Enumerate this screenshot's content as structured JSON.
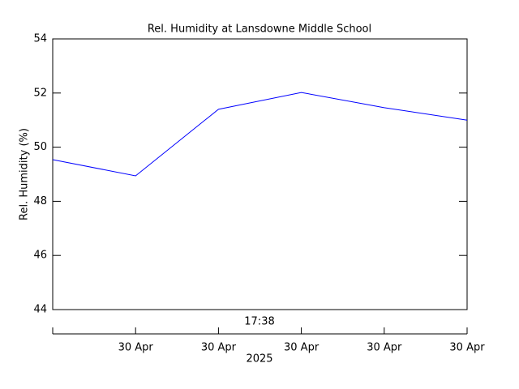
{
  "chart_data": {
    "type": "line",
    "title": "Rel. Humidity at Lansdowne Middle School",
    "y_label": "Rel. Humidity (%)",
    "time_label": "17:38",
    "year_label": "2025",
    "categories": [
      null,
      "30 Apr",
      "30 Apr",
      "30 Apr",
      "30 Apr",
      "30 Apr"
    ],
    "series": [
      {
        "name": "Rel. Humidity",
        "color": "#0000ff",
        "values": [
          49.54,
          48.94,
          51.4,
          52.02,
          51.46,
          51.0
        ]
      }
    ],
    "ylim": [
      44,
      54
    ],
    "yticks": [
      44,
      46,
      48,
      50,
      52,
      54
    ],
    "grid": false
  }
}
